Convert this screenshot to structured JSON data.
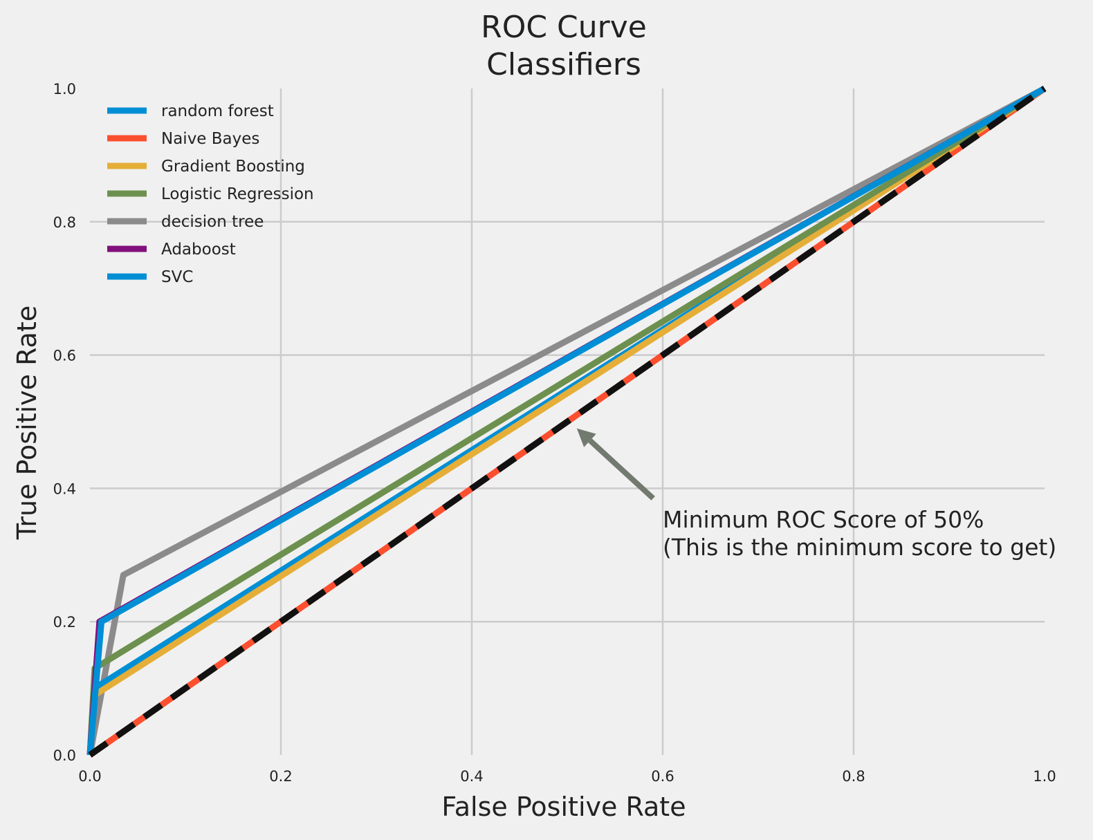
{
  "chart_data": {
    "type": "line",
    "title": "ROC Curve",
    "subtitle": "Classifiers",
    "xlabel": "False Positive Rate",
    "ylabel": "True Positive Rate",
    "xlim": [
      0.0,
      1.0
    ],
    "ylim": [
      0.0,
      1.0
    ],
    "xticks": [
      "0.0",
      "0.2",
      "0.4",
      "0.6",
      "0.8",
      "1.0"
    ],
    "yticks": [
      "0.0",
      "0.2",
      "0.4",
      "0.6",
      "0.8",
      "1.0"
    ],
    "grid": true,
    "legend_position": "top-left",
    "series": [
      {
        "name": "random forest",
        "color": "#008fd5",
        "x": [
          0.0,
          0.005,
          1.0
        ],
        "y": [
          0.0,
          0.1,
          1.0
        ]
      },
      {
        "name": "Naive Bayes",
        "color": "#fc4f30",
        "x": [
          0.0,
          1.0
        ],
        "y": [
          0.0,
          1.0
        ]
      },
      {
        "name": "Gradient Boosting",
        "color": "#e5ae38",
        "x": [
          0.0,
          0.005,
          1.0
        ],
        "y": [
          0.0,
          0.09,
          1.0
        ]
      },
      {
        "name": "Logistic Regression",
        "color": "#6d904f",
        "x": [
          0.0,
          0.005,
          1.0
        ],
        "y": [
          0.0,
          0.13,
          1.0
        ]
      },
      {
        "name": "decision tree",
        "color": "#8b8b8b",
        "x": [
          0.0,
          0.035,
          1.0
        ],
        "y": [
          0.0,
          0.27,
          1.0
        ]
      },
      {
        "name": "Adaboost",
        "color": "#810f7c",
        "x": [
          0.0,
          0.01,
          1.0
        ],
        "y": [
          0.0,
          0.2,
          1.0
        ]
      },
      {
        "name": "SVC",
        "color": "#008fd5",
        "x": [
          0.0,
          0.012,
          1.0
        ],
        "y": [
          0.0,
          0.2,
          1.0
        ]
      }
    ],
    "baseline": {
      "color": "#111111",
      "x": [
        0.0,
        1.0
      ],
      "y": [
        0.0,
        1.0
      ],
      "style": "dashed"
    },
    "annotation": {
      "lines": [
        "Minimum ROC Score of 50%",
        " (This is the minimum score to get)"
      ],
      "text_at": [
        0.6,
        0.3
      ],
      "arrow_from": [
        0.59,
        0.385
      ],
      "arrow_to": [
        0.51,
        0.49
      ],
      "arrow_color": "#727a70"
    }
  }
}
